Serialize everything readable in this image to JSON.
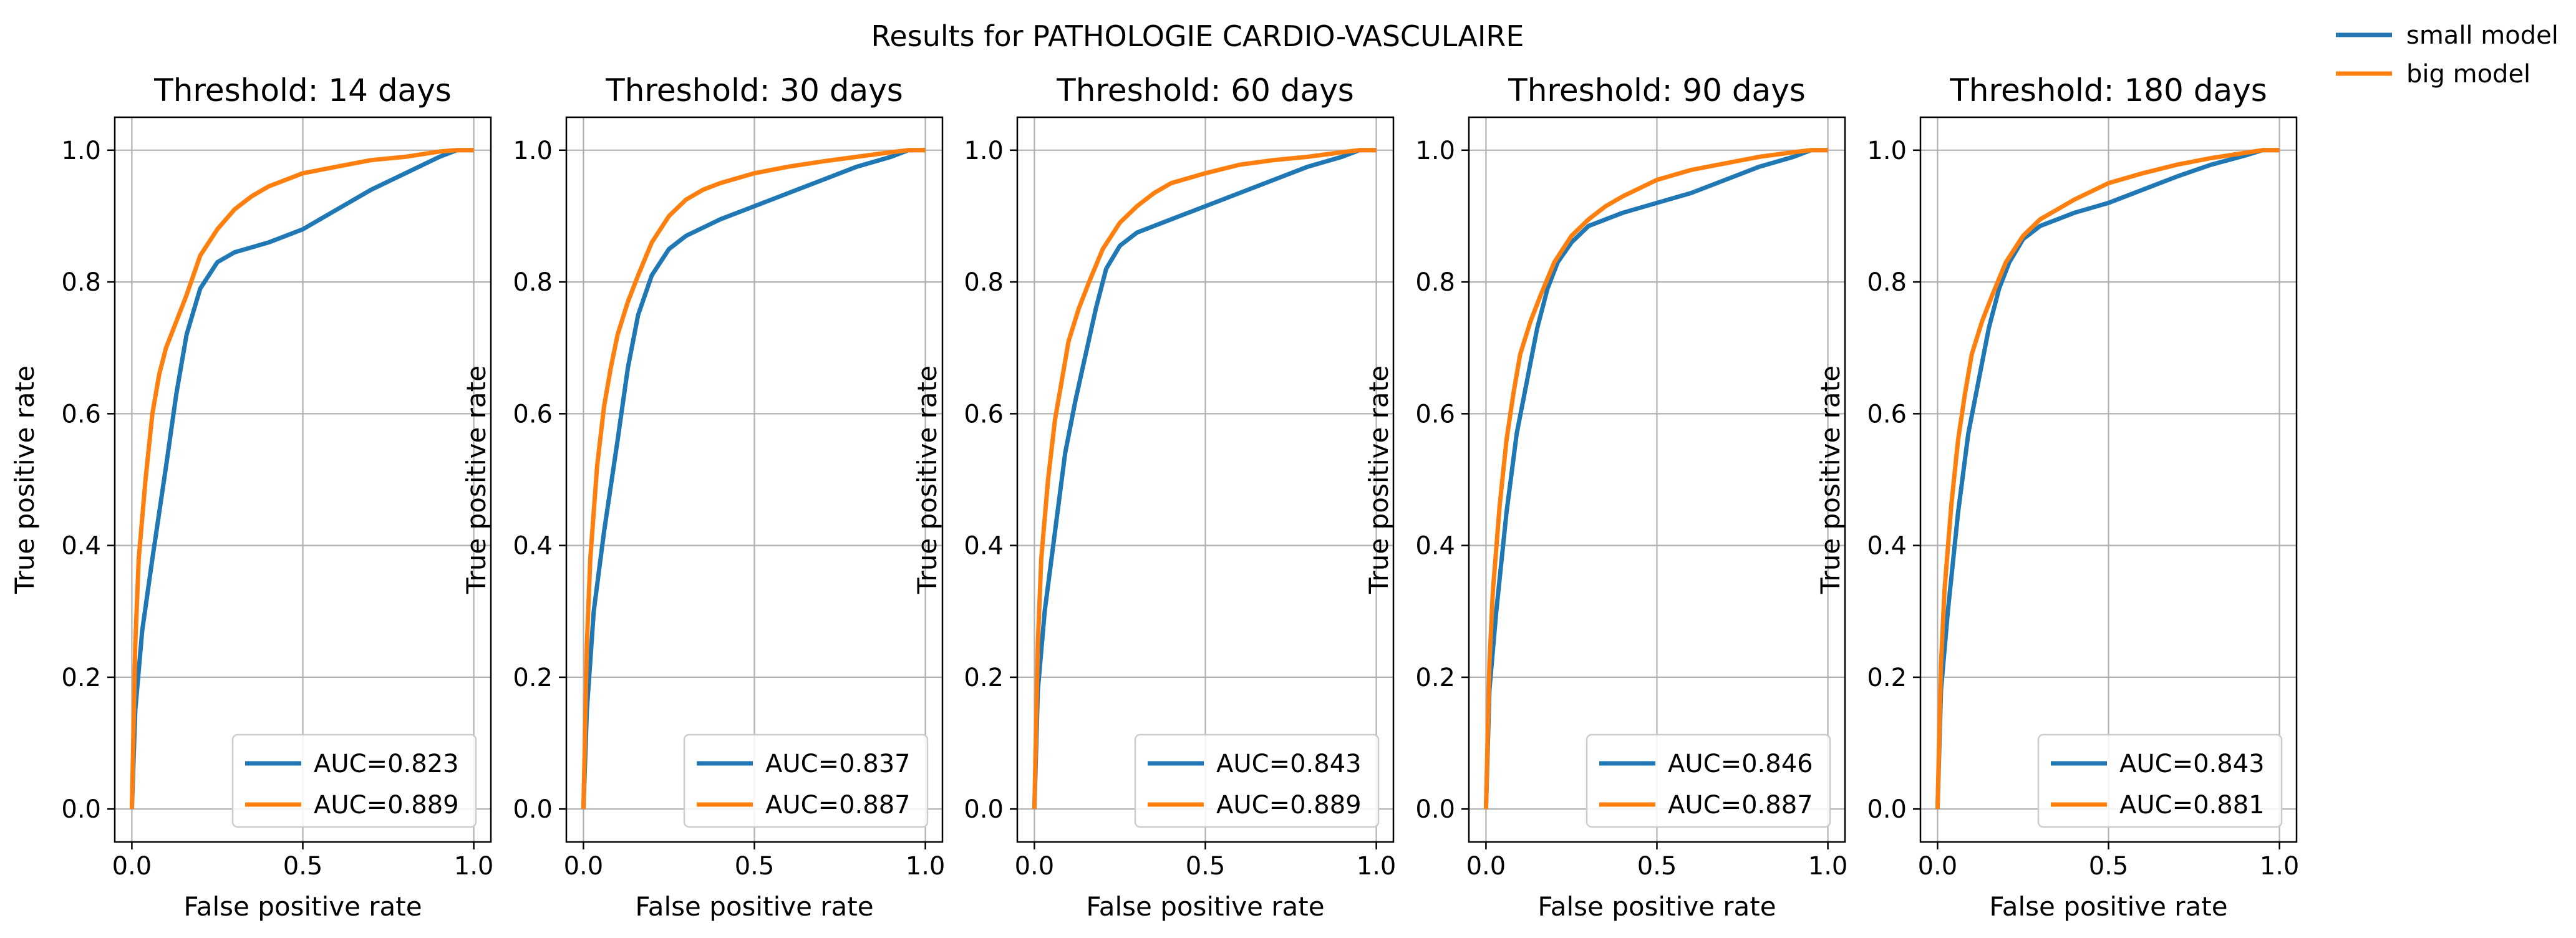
{
  "figure_title": "Results for PATHOLOGIE CARDIO-VASCULAIRE",
  "figure_legend": [
    {
      "label": "small model",
      "color": "#1f77b4"
    },
    {
      "label": "big model",
      "color": "#ff7f0e"
    }
  ],
  "colors": {
    "small_model": "#1f77b4",
    "big_model": "#ff7f0e",
    "grid": "#b0b0b0"
  },
  "chart_data": [
    {
      "type": "line",
      "title": "Threshold: 14 days",
      "xlabel": "False positive rate",
      "ylabel": "True positive rate",
      "xlim": [
        -0.05,
        1.05
      ],
      "ylim": [
        -0.05,
        1.05
      ],
      "xticks": [
        "0.0",
        "0.5",
        "1.0"
      ],
      "yticks": [
        "0.0",
        "0.2",
        "0.4",
        "0.6",
        "0.8",
        "1.0"
      ],
      "grid": true,
      "legend_position": "lower-right",
      "series": [
        {
          "name": "AUC=0.823",
          "x": [
            0,
            0.01,
            0.03,
            0.06,
            0.1,
            0.13,
            0.16,
            0.2,
            0.25,
            0.3,
            0.4,
            0.5,
            0.6,
            0.7,
            0.8,
            0.9,
            0.95,
            1.0
          ],
          "y": [
            0,
            0.15,
            0.27,
            0.38,
            0.52,
            0.63,
            0.72,
            0.79,
            0.83,
            0.845,
            0.86,
            0.88,
            0.91,
            0.94,
            0.965,
            0.99,
            1.0,
            1.0
          ]
        },
        {
          "name": "AUC=0.889",
          "x": [
            0,
            0.01,
            0.02,
            0.04,
            0.06,
            0.08,
            0.1,
            0.13,
            0.16,
            0.2,
            0.25,
            0.3,
            0.35,
            0.4,
            0.5,
            0.6,
            0.7,
            0.8,
            0.9,
            0.95,
            1.0
          ],
          "y": [
            0,
            0.25,
            0.38,
            0.5,
            0.6,
            0.66,
            0.7,
            0.74,
            0.78,
            0.84,
            0.88,
            0.91,
            0.93,
            0.945,
            0.965,
            0.975,
            0.985,
            0.99,
            0.998,
            1.0,
            1.0
          ]
        }
      ]
    },
    {
      "type": "line",
      "title": "Threshold: 30 days",
      "xlabel": "False positive rate",
      "ylabel": "True positive rate",
      "xlim": [
        -0.05,
        1.05
      ],
      "ylim": [
        -0.05,
        1.05
      ],
      "xticks": [
        "0.0",
        "0.5",
        "1.0"
      ],
      "yticks": [
        "0.0",
        "0.2",
        "0.4",
        "0.6",
        "0.8",
        "1.0"
      ],
      "grid": true,
      "legend_position": "lower-right",
      "series": [
        {
          "name": "AUC=0.837",
          "x": [
            0,
            0.01,
            0.03,
            0.06,
            0.1,
            0.13,
            0.16,
            0.2,
            0.25,
            0.3,
            0.4,
            0.5,
            0.6,
            0.7,
            0.8,
            0.9,
            0.95,
            1.0
          ],
          "y": [
            0,
            0.15,
            0.3,
            0.42,
            0.56,
            0.67,
            0.75,
            0.81,
            0.85,
            0.87,
            0.895,
            0.915,
            0.935,
            0.955,
            0.975,
            0.99,
            1.0,
            1.0
          ]
        },
        {
          "name": "AUC=0.887",
          "x": [
            0,
            0.01,
            0.02,
            0.04,
            0.06,
            0.08,
            0.1,
            0.13,
            0.16,
            0.2,
            0.25,
            0.3,
            0.35,
            0.4,
            0.5,
            0.6,
            0.7,
            0.8,
            0.9,
            0.95,
            1.0
          ],
          "y": [
            0,
            0.25,
            0.38,
            0.52,
            0.61,
            0.67,
            0.72,
            0.77,
            0.81,
            0.86,
            0.9,
            0.925,
            0.94,
            0.95,
            0.965,
            0.975,
            0.983,
            0.99,
            0.997,
            1.0,
            1.0
          ]
        }
      ]
    },
    {
      "type": "line",
      "title": "Threshold: 60 days",
      "xlabel": "False positive rate",
      "ylabel": "True positive rate",
      "xlim": [
        -0.05,
        1.05
      ],
      "ylim": [
        -0.05,
        1.05
      ],
      "xticks": [
        "0.0",
        "0.5",
        "1.0"
      ],
      "yticks": [
        "0.0",
        "0.2",
        "0.4",
        "0.6",
        "0.8",
        "1.0"
      ],
      "grid": true,
      "legend_position": "lower-right",
      "series": [
        {
          "name": "AUC=0.843",
          "x": [
            0,
            0.01,
            0.03,
            0.06,
            0.09,
            0.12,
            0.15,
            0.18,
            0.21,
            0.25,
            0.3,
            0.4,
            0.5,
            0.6,
            0.7,
            0.8,
            0.9,
            0.95,
            1.0
          ],
          "y": [
            0,
            0.18,
            0.3,
            0.42,
            0.54,
            0.62,
            0.69,
            0.76,
            0.82,
            0.855,
            0.875,
            0.895,
            0.915,
            0.935,
            0.955,
            0.975,
            0.99,
            1.0,
            1.0
          ]
        },
        {
          "name": "AUC=0.889",
          "x": [
            0,
            0.01,
            0.02,
            0.04,
            0.06,
            0.08,
            0.1,
            0.13,
            0.16,
            0.2,
            0.25,
            0.3,
            0.35,
            0.4,
            0.5,
            0.6,
            0.7,
            0.8,
            0.9,
            0.95,
            1.0
          ],
          "y": [
            0,
            0.25,
            0.38,
            0.5,
            0.59,
            0.65,
            0.71,
            0.76,
            0.8,
            0.85,
            0.89,
            0.915,
            0.935,
            0.95,
            0.965,
            0.978,
            0.985,
            0.99,
            0.997,
            1.0,
            1.0
          ]
        }
      ]
    },
    {
      "type": "line",
      "title": "Threshold: 90 days",
      "xlabel": "False positive rate",
      "ylabel": "True positive rate",
      "xlim": [
        -0.05,
        1.05
      ],
      "ylim": [
        -0.05,
        1.05
      ],
      "xticks": [
        "0.0",
        "0.5",
        "1.0"
      ],
      "yticks": [
        "0.0",
        "0.2",
        "0.4",
        "0.6",
        "0.8",
        "1.0"
      ],
      "grid": true,
      "legend_position": "lower-right",
      "series": [
        {
          "name": "AUC=0.846",
          "x": [
            0,
            0.01,
            0.03,
            0.06,
            0.09,
            0.12,
            0.15,
            0.18,
            0.21,
            0.25,
            0.3,
            0.4,
            0.5,
            0.6,
            0.7,
            0.8,
            0.9,
            0.95,
            1.0
          ],
          "y": [
            0,
            0.18,
            0.3,
            0.45,
            0.57,
            0.65,
            0.73,
            0.79,
            0.83,
            0.86,
            0.885,
            0.905,
            0.92,
            0.935,
            0.955,
            0.975,
            0.99,
            1.0,
            1.0
          ]
        },
        {
          "name": "AUC=0.887",
          "x": [
            0,
            0.01,
            0.02,
            0.04,
            0.06,
            0.08,
            0.1,
            0.13,
            0.16,
            0.2,
            0.25,
            0.3,
            0.35,
            0.4,
            0.5,
            0.6,
            0.7,
            0.8,
            0.9,
            0.95,
            1.0
          ],
          "y": [
            0,
            0.22,
            0.33,
            0.46,
            0.56,
            0.63,
            0.69,
            0.74,
            0.78,
            0.83,
            0.87,
            0.895,
            0.915,
            0.93,
            0.955,
            0.97,
            0.98,
            0.99,
            0.997,
            1.0,
            1.0
          ]
        }
      ]
    },
    {
      "type": "line",
      "title": "Threshold: 180 days",
      "xlabel": "False positive rate",
      "ylabel": "True positive rate",
      "xlim": [
        -0.05,
        1.05
      ],
      "ylim": [
        -0.05,
        1.05
      ],
      "xticks": [
        "0.0",
        "0.5",
        "1.0"
      ],
      "yticks": [
        "0.0",
        "0.2",
        "0.4",
        "0.6",
        "0.8",
        "1.0"
      ],
      "grid": true,
      "legend_position": "lower-right",
      "series": [
        {
          "name": "AUC=0.843",
          "x": [
            0,
            0.01,
            0.03,
            0.06,
            0.09,
            0.12,
            0.15,
            0.18,
            0.21,
            0.25,
            0.3,
            0.4,
            0.5,
            0.6,
            0.7,
            0.8,
            0.9,
            0.95,
            1.0
          ],
          "y": [
            0,
            0.18,
            0.3,
            0.45,
            0.57,
            0.65,
            0.73,
            0.79,
            0.83,
            0.865,
            0.885,
            0.905,
            0.92,
            0.94,
            0.96,
            0.978,
            0.992,
            1.0,
            1.0
          ]
        },
        {
          "name": "AUC=0.881",
          "x": [
            0,
            0.01,
            0.02,
            0.04,
            0.06,
            0.08,
            0.1,
            0.13,
            0.16,
            0.2,
            0.25,
            0.3,
            0.35,
            0.4,
            0.5,
            0.6,
            0.7,
            0.8,
            0.9,
            0.95,
            1.0
          ],
          "y": [
            0,
            0.22,
            0.33,
            0.46,
            0.56,
            0.63,
            0.69,
            0.74,
            0.78,
            0.83,
            0.87,
            0.895,
            0.91,
            0.925,
            0.95,
            0.965,
            0.978,
            0.988,
            0.996,
            1.0,
            1.0
          ]
        }
      ]
    }
  ]
}
